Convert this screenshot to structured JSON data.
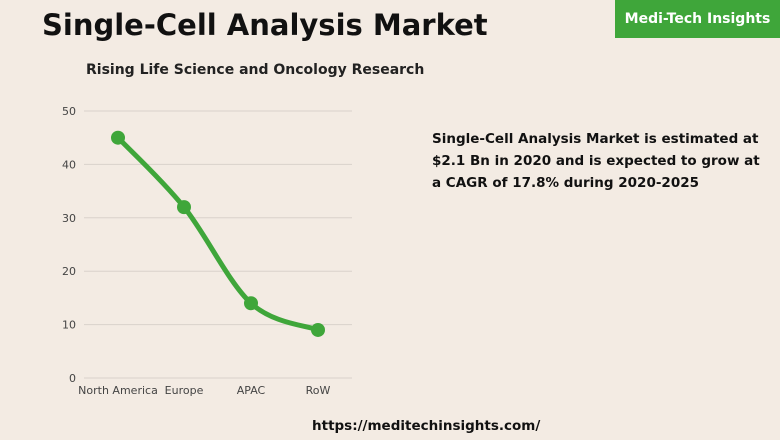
{
  "header": {
    "title": "Single-Cell Analysis Market",
    "brand": "Medi-Tech Insights"
  },
  "description": "Single-Cell Analysis Market is estimated at $2.1 Bn in 2020 and is expected to grow at a CAGR of 17.8% during 2020-2025",
  "footer": {
    "url": "https://meditechinsights.com/"
  },
  "colors": {
    "accent": "#3fa63a",
    "background": "#f3ebe3",
    "grid": "#d9d2cb"
  },
  "chart_data": {
    "type": "line",
    "title": "Rising Life Science and Oncology Research",
    "categories": [
      "North America",
      "Europe",
      "APAC",
      "RoW"
    ],
    "series": [
      {
        "values": [
          45,
          32,
          14,
          9
        ]
      }
    ],
    "yticks": [
      0,
      10,
      20,
      30,
      40,
      50
    ],
    "ylim": [
      0,
      50
    ],
    "grid": true,
    "line_style": "smooth",
    "markers": "filled-circle"
  }
}
